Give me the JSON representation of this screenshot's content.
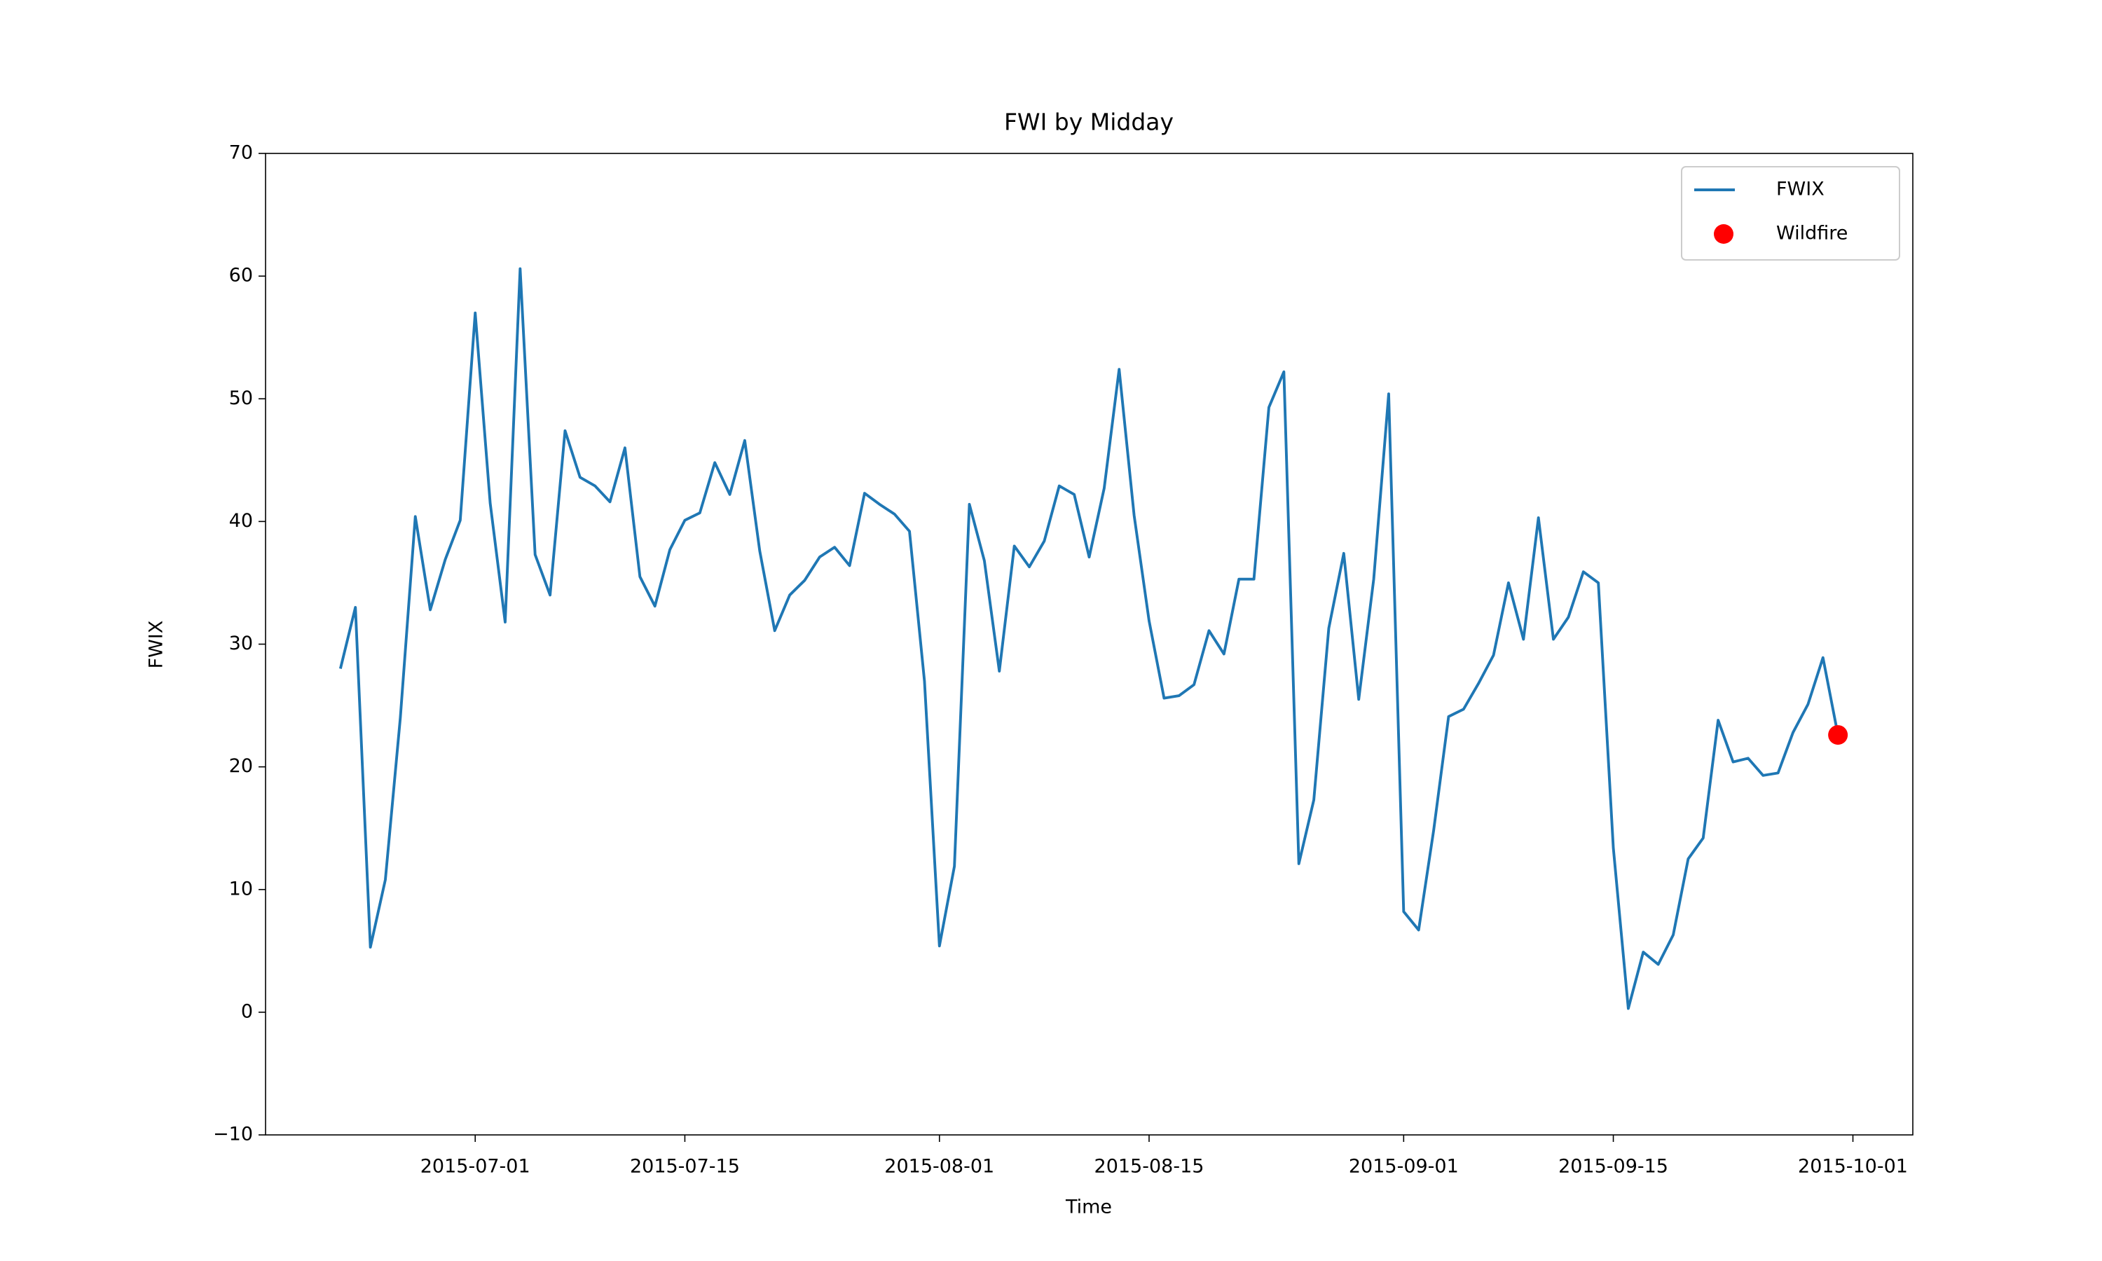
{
  "chart_data": {
    "type": "line",
    "title": "FWI by Midday",
    "x_label": "Time",
    "y_label": "FWIX",
    "x": [
      "2015-06-22",
      "2015-06-23",
      "2015-06-24",
      "2015-06-25",
      "2015-06-26",
      "2015-06-27",
      "2015-06-28",
      "2015-06-29",
      "2015-06-30",
      "2015-07-01",
      "2015-07-02",
      "2015-07-03",
      "2015-07-04",
      "2015-07-05",
      "2015-07-06",
      "2015-07-07",
      "2015-07-08",
      "2015-07-09",
      "2015-07-10",
      "2015-07-11",
      "2015-07-12",
      "2015-07-13",
      "2015-07-14",
      "2015-07-15",
      "2015-07-16",
      "2015-07-17",
      "2015-07-18",
      "2015-07-19",
      "2015-07-20",
      "2015-07-21",
      "2015-07-22",
      "2015-07-23",
      "2015-07-24",
      "2015-07-25",
      "2015-07-26",
      "2015-07-27",
      "2015-07-28",
      "2015-07-29",
      "2015-07-30",
      "2015-07-31",
      "2015-08-01",
      "2015-08-02",
      "2015-08-03",
      "2015-08-04",
      "2015-08-05",
      "2015-08-06",
      "2015-08-07",
      "2015-08-08",
      "2015-08-09",
      "2015-08-10",
      "2015-08-11",
      "2015-08-12",
      "2015-08-13",
      "2015-08-14",
      "2015-08-15",
      "2015-08-16",
      "2015-08-17",
      "2015-08-18",
      "2015-08-19",
      "2015-08-20",
      "2015-08-21",
      "2015-08-22",
      "2015-08-23",
      "2015-08-24",
      "2015-08-25",
      "2015-08-26",
      "2015-08-27",
      "2015-08-28",
      "2015-08-29",
      "2015-08-30",
      "2015-08-31",
      "2015-09-01",
      "2015-09-02",
      "2015-09-03",
      "2015-09-04",
      "2015-09-05",
      "2015-09-06",
      "2015-09-07",
      "2015-09-08",
      "2015-09-09",
      "2015-09-10",
      "2015-09-11",
      "2015-09-12",
      "2015-09-13",
      "2015-09-14",
      "2015-09-15",
      "2015-09-16",
      "2015-09-17",
      "2015-09-18",
      "2015-09-19",
      "2015-09-20",
      "2015-09-21",
      "2015-09-22",
      "2015-09-23",
      "2015-09-24",
      "2015-09-25",
      "2015-09-26",
      "2015-09-27",
      "2015-09-28",
      "2015-09-29",
      "2015-09-30"
    ],
    "series": [
      {
        "name": "FWIX",
        "type": "line",
        "color": "#1f77b4",
        "values": [
          28.0,
          33.0,
          5.3,
          10.8,
          24.0,
          40.4,
          32.8,
          36.9,
          40.1,
          57.0,
          41.5,
          31.8,
          60.6,
          37.3,
          34.0,
          47.4,
          43.6,
          42.9,
          41.6,
          46.0,
          35.5,
          33.1,
          37.7,
          40.1,
          40.7,
          44.8,
          42.2,
          46.6,
          37.6,
          31.1,
          34.0,
          35.2,
          37.1,
          37.9,
          36.4,
          42.3,
          41.4,
          40.6,
          39.2,
          27.0,
          5.4,
          11.9,
          41.4,
          36.8,
          27.8,
          38.0,
          36.3,
          38.4,
          42.9,
          42.2,
          37.1,
          42.7,
          52.4,
          40.5,
          31.9,
          25.6,
          25.8,
          26.7,
          31.1,
          29.2,
          35.3,
          35.3,
          49.3,
          52.2,
          12.1,
          17.3,
          31.3,
          37.4,
          25.5,
          35.3,
          50.4,
          8.2,
          6.7,
          14.8,
          24.1,
          24.7,
          26.8,
          29.1,
          35.0,
          30.4,
          40.3,
          30.4,
          32.2,
          35.9,
          35.0,
          13.4,
          0.3,
          4.9,
          3.9,
          6.3,
          12.5,
          14.2,
          23.8,
          20.4,
          20.7,
          19.3,
          19.5,
          22.8,
          25.1,
          28.9,
          22.6
        ]
      },
      {
        "name": "Wildfire",
        "type": "scatter",
        "color": "#ff0000",
        "values": [
          null,
          null,
          null,
          null,
          null,
          null,
          null,
          null,
          null,
          null,
          null,
          null,
          null,
          null,
          null,
          null,
          null,
          null,
          null,
          null,
          null,
          null,
          null,
          null,
          null,
          null,
          null,
          null,
          null,
          null,
          null,
          null,
          null,
          null,
          null,
          null,
          null,
          null,
          null,
          null,
          null,
          null,
          null,
          null,
          null,
          null,
          null,
          null,
          null,
          null,
          null,
          null,
          null,
          null,
          null,
          null,
          null,
          null,
          null,
          null,
          null,
          null,
          null,
          null,
          null,
          null,
          null,
          null,
          null,
          null,
          null,
          null,
          null,
          null,
          null,
          null,
          null,
          null,
          null,
          null,
          null,
          null,
          null,
          null,
          null,
          null,
          null,
          null,
          null,
          null,
          null,
          null,
          null,
          null,
          null,
          null,
          null,
          null,
          null,
          null,
          22.6
        ]
      }
    ],
    "xlim": [
      "2015-06-17",
      "2015-10-05"
    ],
    "xticks": [
      "2015-07-01",
      "2015-07-15",
      "2015-08-01",
      "2015-08-15",
      "2015-09-01",
      "2015-09-15",
      "2015-10-01"
    ],
    "ylim": [
      -10,
      70
    ],
    "yticks": [
      {
        "value": -10,
        "label": "−10"
      },
      0,
      10,
      20,
      30,
      40,
      50,
      60,
      70
    ],
    "grid": false,
    "legend": "upper right"
  }
}
